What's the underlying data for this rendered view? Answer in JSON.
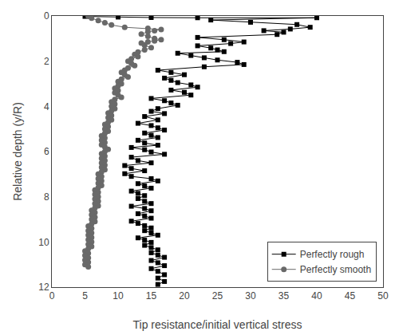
{
  "chart_data": {
    "type": "line",
    "xlabel": "Tip resistance/initial vertical stress",
    "ylabel": "Relative depth (y/R)",
    "xlim": [
      0,
      50
    ],
    "ylim": [
      12,
      0
    ],
    "xticks": [
      0,
      5,
      10,
      15,
      20,
      25,
      30,
      35,
      40,
      45,
      50
    ],
    "yticks": [
      0,
      2,
      4,
      6,
      8,
      10,
      12
    ],
    "grid": false,
    "legend": "lower right",
    "series": [
      {
        "name": "Perfectly rough",
        "color": "#000000",
        "marker": "square",
        "line_style": "solid",
        "x": [
          5.0,
          10.0,
          15.0,
          22.0,
          40.0,
          24.0,
          30.0,
          37.0,
          39.0,
          36.0,
          32.0,
          35.0,
          34.0,
          22.0,
          26.0,
          29.0,
          27.0,
          22.0,
          24.0,
          25.0,
          26.0,
          19.0,
          21.0,
          23.0,
          25.0,
          28.0,
          29.0,
          23.0,
          16.0,
          18.0,
          20.0,
          17.0,
          18.0,
          19.0,
          21.0,
          22.0,
          18.0,
          20.0,
          21.0,
          15.0,
          17.0,
          18.0,
          19.0,
          16.0,
          15.0,
          17.0,
          14.0,
          16.0,
          13.0,
          15.0,
          16.0,
          17.0,
          14.0,
          15.0,
          16.0,
          13.0,
          14.0,
          16.0,
          12.0,
          14.0,
          15.0,
          17.0,
          12.0,
          13.0,
          15.0,
          11.0,
          12.0,
          14.0,
          11.0,
          12.0,
          15.0,
          16.0,
          13.0,
          14.0,
          15.0,
          12.0,
          13.0,
          14.0,
          13.0,
          14.0,
          15.0,
          12.0,
          14.0,
          15.0,
          13.0,
          14.0,
          15.0,
          12.0,
          13.0,
          14.0,
          15.0,
          14.0,
          15.0,
          16.0,
          13.0,
          14.0,
          15.0,
          14.0,
          15.0,
          16.0,
          15.0,
          16.0,
          17.0,
          15.0,
          16.0,
          17.0,
          15.0,
          16.0,
          17.0,
          16.0,
          17.0,
          16.0
        ],
        "values": [
          0.02,
          0.05,
          0.07,
          0.08,
          0.08,
          0.18,
          0.28,
          0.38,
          0.5,
          0.58,
          0.65,
          0.72,
          0.82,
          0.95,
          1.05,
          1.15,
          1.22,
          1.32,
          1.42,
          1.5,
          1.58,
          1.65,
          1.75,
          1.85,
          1.95,
          2.05,
          2.15,
          2.25,
          2.4,
          2.5,
          2.6,
          2.75,
          2.85,
          2.95,
          3.05,
          3.15,
          3.28,
          3.38,
          3.5,
          3.65,
          3.75,
          3.85,
          3.95,
          4.1,
          4.22,
          4.32,
          4.45,
          4.6,
          4.75,
          4.85,
          4.95,
          5.05,
          5.18,
          5.28,
          5.38,
          5.5,
          5.62,
          5.72,
          5.82,
          5.92,
          6.02,
          6.12,
          6.25,
          6.4,
          6.5,
          6.62,
          6.75,
          6.85,
          6.98,
          7.1,
          7.2,
          7.3,
          7.42,
          7.52,
          7.62,
          7.75,
          7.85,
          7.95,
          8.08,
          8.2,
          8.3,
          8.42,
          8.52,
          8.62,
          8.75,
          8.85,
          8.95,
          9.08,
          9.18,
          9.28,
          9.38,
          9.5,
          9.6,
          9.7,
          9.82,
          9.92,
          10.02,
          10.15,
          10.25,
          10.35,
          10.48,
          10.58,
          10.68,
          10.82,
          10.92,
          11.05,
          11.18,
          11.3,
          11.45,
          11.6,
          11.75,
          11.88
        ]
      },
      {
        "name": "Perfectly smooth",
        "color": "#696969",
        "marker": "circle",
        "line_style": "solid",
        "x": [
          5.5,
          6.0,
          7.0,
          8.0,
          9.0,
          11.0,
          14.5,
          16.5,
          15.5,
          14.5,
          13.5,
          14.5,
          15.5,
          16.5,
          15.5,
          14.5,
          13.5,
          14.0,
          15.0,
          14.0,
          13.0,
          12.5,
          13.0,
          12.0,
          11.5,
          12.0,
          12.5,
          11.5,
          11.0,
          10.5,
          11.0,
          11.5,
          10.5,
          10.0,
          10.5,
          10.0,
          9.5,
          10.0,
          9.5,
          10.0,
          10.5,
          9.5,
          9.0,
          9.5,
          9.0,
          9.5,
          9.0,
          8.5,
          9.0,
          8.5,
          9.0,
          8.5,
          8.0,
          8.5,
          8.0,
          8.5,
          8.0,
          7.5,
          8.0,
          7.5,
          8.0,
          7.5,
          8.0,
          8.5,
          8.0,
          7.5,
          8.0,
          7.5,
          8.0,
          7.5,
          8.0,
          7.5,
          8.0,
          7.5,
          7.0,
          7.5,
          7.0,
          7.5,
          7.0,
          7.5,
          7.0,
          6.5,
          7.0,
          6.5,
          7.0,
          6.5,
          7.0,
          6.5,
          7.0,
          6.5,
          6.0,
          6.5,
          6.0,
          6.5,
          6.0,
          6.5,
          6.0,
          5.5,
          6.0,
          5.5,
          6.0,
          5.5,
          6.0,
          5.5,
          6.0,
          5.5,
          6.0,
          5.5,
          5.0,
          5.5,
          5.0,
          5.5,
          5.0,
          5.5,
          5.0,
          5.5
        ],
        "values": [
          0.02,
          0.1,
          0.2,
          0.3,
          0.4,
          0.5,
          0.55,
          0.6,
          0.65,
          0.7,
          0.8,
          0.9,
          1.0,
          1.05,
          1.1,
          1.15,
          1.2,
          1.3,
          1.4,
          1.5,
          1.6,
          1.7,
          1.8,
          1.9,
          2.0,
          2.1,
          2.2,
          2.3,
          2.4,
          2.5,
          2.6,
          2.7,
          2.8,
          2.9,
          3.0,
          3.1,
          3.2,
          3.3,
          3.4,
          3.5,
          3.6,
          3.7,
          3.8,
          3.9,
          4.0,
          4.1,
          4.2,
          4.3,
          4.4,
          4.5,
          4.6,
          4.7,
          4.8,
          4.9,
          5.0,
          5.1,
          5.2,
          5.3,
          5.4,
          5.5,
          5.6,
          5.7,
          5.8,
          5.9,
          6.0,
          6.1,
          6.2,
          6.3,
          6.4,
          6.5,
          6.6,
          6.7,
          6.8,
          6.9,
          7.0,
          7.1,
          7.2,
          7.3,
          7.4,
          7.5,
          7.6,
          7.7,
          7.8,
          7.9,
          8.0,
          8.1,
          8.2,
          8.3,
          8.4,
          8.5,
          8.6,
          8.7,
          8.8,
          8.9,
          9.0,
          9.1,
          9.2,
          9.3,
          9.4,
          9.5,
          9.6,
          9.7,
          9.8,
          9.9,
          10.0,
          10.1,
          10.2,
          10.3,
          10.4,
          10.5,
          10.6,
          10.7,
          10.8,
          10.9,
          11.0,
          11.1
        ]
      }
    ]
  }
}
